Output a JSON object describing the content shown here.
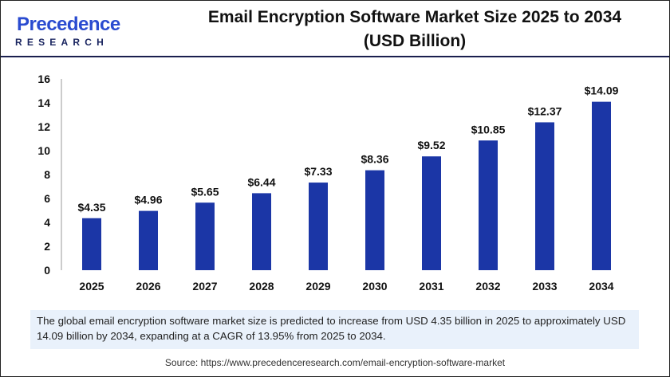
{
  "logo": {
    "brand_top": "Precedence",
    "brand_bottom": "RESEARCH"
  },
  "title_line1": "Email Encryption Software Market Size 2025 to 2034",
  "title_line2": "(USD Billion)",
  "chart_data": {
    "type": "bar",
    "title": "Email Encryption Software Market Size 2025 to 2034 (USD Billion)",
    "categories": [
      "2025",
      "2026",
      "2027",
      "2028",
      "2029",
      "2030",
      "2031",
      "2032",
      "2033",
      "2034"
    ],
    "values": [
      4.35,
      4.96,
      5.65,
      6.44,
      7.33,
      8.36,
      9.52,
      10.85,
      12.37,
      14.09
    ],
    "data_labels": [
      "$4.35",
      "$4.96",
      "$5.65",
      "$6.44",
      "$7.33",
      "$8.36",
      "$9.52",
      "$10.85",
      "$12.37",
      "$14.09"
    ],
    "yticks": [
      0,
      2,
      4,
      6,
      8,
      10,
      12,
      14,
      16
    ],
    "ylim": [
      0,
      16
    ],
    "xlabel": "",
    "ylabel": "",
    "grid": false,
    "bar_color": "#1b36a6"
  },
  "info_text": "The global email encryption software market size is predicted to increase from USD 4.35 billion in 2025 to approximately USD 14.09 billion by 2034, expanding at a CAGR of 13.95% from 2025 to 2034.",
  "source": "Source: https://www.precedenceresearch.com/email-encryption-software-market"
}
